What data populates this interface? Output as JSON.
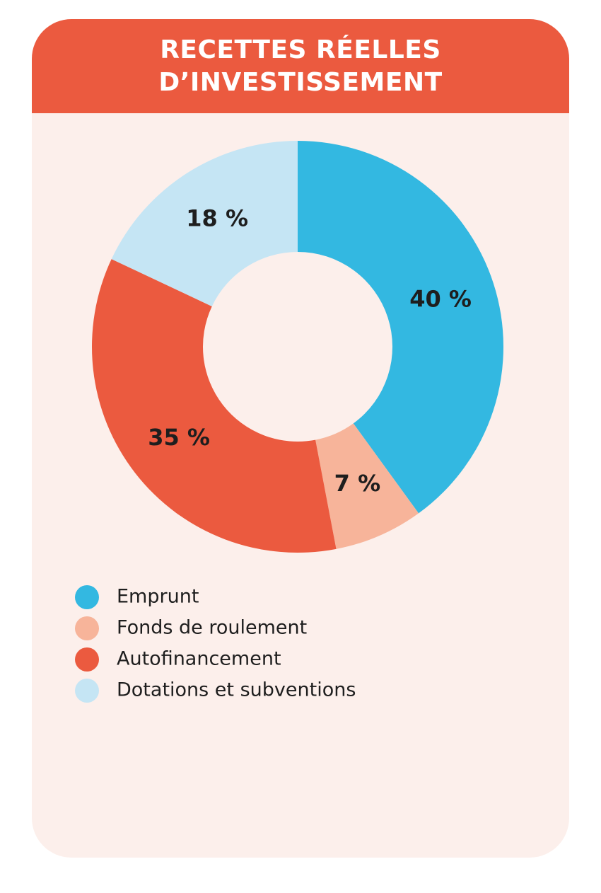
{
  "chart_data": {
    "type": "donut",
    "title": "RECETTES RÉELLES D’INVESTISSEMENT",
    "categories": [
      "Emprunt",
      "Fonds de roulement",
      "Autofinancement",
      "Dotations et subventions"
    ],
    "values": [
      40,
      7,
      35,
      18
    ],
    "value_labels": [
      "40 %",
      "7 %",
      "35 %",
      "18 %"
    ],
    "colors": [
      "#33b8e1",
      "#f7b49a",
      "#eb5a3f",
      "#c5e5f4"
    ]
  }
}
